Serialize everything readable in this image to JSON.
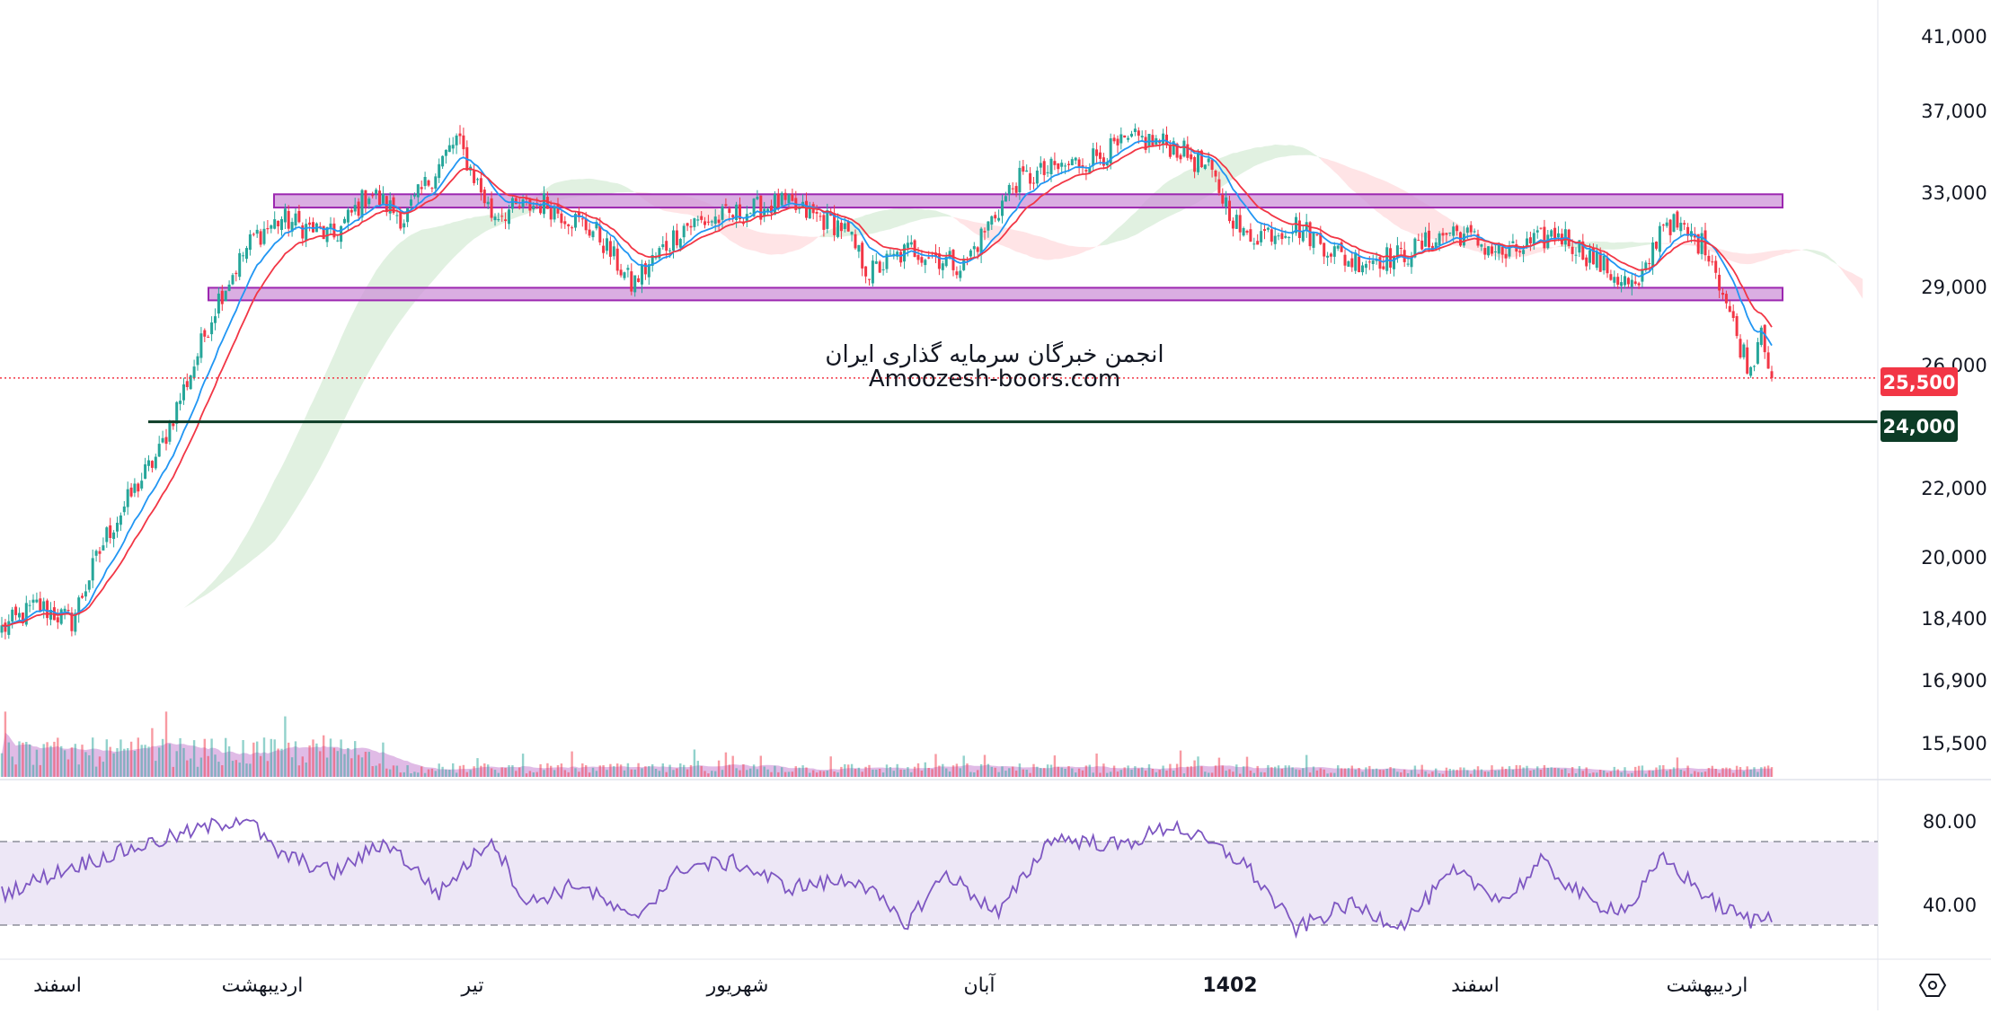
{
  "watermark": {
    "line1": "انجمن خبرگان سرمایه گذاری ایران",
    "line2": "Amoozesh-boors.com"
  },
  "price_axis": {
    "ticks": [
      "41,000",
      "37,000",
      "33,000",
      "29,000",
      "26,000",
      "22,000",
      "20,000",
      "18,400",
      "16,900",
      "15,500"
    ]
  },
  "rsi_axis": {
    "ticks": [
      "80.00",
      "40.00"
    ]
  },
  "time_axis": {
    "labels": [
      "اسفند",
      "اردیبهشت",
      "تیر",
      "شهریور",
      "آبان",
      "1402",
      "اسفند",
      "اردیبهشت"
    ]
  },
  "price_tags": {
    "last": "25,500",
    "level": "24,000"
  },
  "colors": {
    "up": "#26a69a",
    "down": "#f23645",
    "ema_fast": "#2196f3",
    "ema_slow": "#f23645",
    "zone_fill": "#ce93d8",
    "zone_border": "#9c27b0",
    "support_line": "#0c3c26",
    "rsi_line": "#7e57c2",
    "rsi_band": "#ede7f6",
    "cloud_bull": "#c8e6c9",
    "cloud_bear": "#ffcdd2"
  },
  "chart_data": {
    "type": "candlestick",
    "price_scale": "log",
    "ylim": [
      15000,
      42000
    ],
    "horizontal_zones": [
      {
        "low": 32300,
        "high": 32900
      },
      {
        "low": 28400,
        "high": 28900
      }
    ],
    "horizontal_levels": [
      24000
    ],
    "last_price": 25500,
    "series_waypoints": [
      {
        "i": 0,
        "price": 18000
      },
      {
        "i": 10,
        "price": 18600
      },
      {
        "i": 20,
        "price": 18200
      },
      {
        "i": 30,
        "price": 20500
      },
      {
        "i": 45,
        "price": 23000
      },
      {
        "i": 55,
        "price": 26000
      },
      {
        "i": 62,
        "price": 28500
      },
      {
        "i": 72,
        "price": 31000
      },
      {
        "i": 80,
        "price": 31800
      },
      {
        "i": 95,
        "price": 31000
      },
      {
        "i": 105,
        "price": 33000
      },
      {
        "i": 115,
        "price": 31800
      },
      {
        "i": 130,
        "price": 35500
      },
      {
        "i": 140,
        "price": 32000
      },
      {
        "i": 155,
        "price": 32500
      },
      {
        "i": 170,
        "price": 31200
      },
      {
        "i": 180,
        "price": 29000
      },
      {
        "i": 195,
        "price": 31500
      },
      {
        "i": 210,
        "price": 32000
      },
      {
        "i": 222,
        "price": 32500
      },
      {
        "i": 240,
        "price": 31500
      },
      {
        "i": 248,
        "price": 29500
      },
      {
        "i": 260,
        "price": 30500
      },
      {
        "i": 275,
        "price": 29800
      },
      {
        "i": 290,
        "price": 33500
      },
      {
        "i": 310,
        "price": 34500
      },
      {
        "i": 325,
        "price": 35500
      },
      {
        "i": 335,
        "price": 35200
      },
      {
        "i": 345,
        "price": 34000
      },
      {
        "i": 355,
        "price": 31000
      },
      {
        "i": 370,
        "price": 31500
      },
      {
        "i": 385,
        "price": 30000
      },
      {
        "i": 400,
        "price": 30200
      },
      {
        "i": 415,
        "price": 31300
      },
      {
        "i": 430,
        "price": 30200
      },
      {
        "i": 445,
        "price": 31200
      },
      {
        "i": 460,
        "price": 29500
      },
      {
        "i": 468,
        "price": 28800
      },
      {
        "i": 475,
        "price": 31800
      },
      {
        "i": 488,
        "price": 30500
      },
      {
        "i": 496,
        "price": 27000
      },
      {
        "i": 500,
        "price": 25800
      },
      {
        "i": 503,
        "price": 27500
      },
      {
        "i": 506,
        "price": 25500
      }
    ],
    "rsi_levels": [
      70,
      30
    ],
    "rsi_waypoints": [
      {
        "i": 0,
        "v": 45
      },
      {
        "i": 20,
        "v": 58
      },
      {
        "i": 40,
        "v": 68
      },
      {
        "i": 70,
        "v": 82
      },
      {
        "i": 78,
        "v": 65
      },
      {
        "i": 95,
        "v": 55
      },
      {
        "i": 110,
        "v": 70
      },
      {
        "i": 125,
        "v": 45
      },
      {
        "i": 140,
        "v": 72
      },
      {
        "i": 150,
        "v": 40
      },
      {
        "i": 165,
        "v": 50
      },
      {
        "i": 180,
        "v": 32
      },
      {
        "i": 195,
        "v": 58
      },
      {
        "i": 210,
        "v": 60
      },
      {
        "i": 225,
        "v": 48
      },
      {
        "i": 245,
        "v": 52
      },
      {
        "i": 258,
        "v": 30
      },
      {
        "i": 270,
        "v": 55
      },
      {
        "i": 285,
        "v": 35
      },
      {
        "i": 300,
        "v": 72
      },
      {
        "i": 320,
        "v": 68
      },
      {
        "i": 335,
        "v": 78
      },
      {
        "i": 355,
        "v": 60
      },
      {
        "i": 370,
        "v": 28
      },
      {
        "i": 385,
        "v": 40
      },
      {
        "i": 400,
        "v": 30
      },
      {
        "i": 415,
        "v": 55
      },
      {
        "i": 430,
        "v": 42
      },
      {
        "i": 440,
        "v": 60
      },
      {
        "i": 455,
        "v": 40
      },
      {
        "i": 465,
        "v": 38
      },
      {
        "i": 475,
        "v": 62
      },
      {
        "i": 490,
        "v": 40
      },
      {
        "i": 500,
        "v": 32
      },
      {
        "i": 506,
        "v": 35
      }
    ]
  }
}
